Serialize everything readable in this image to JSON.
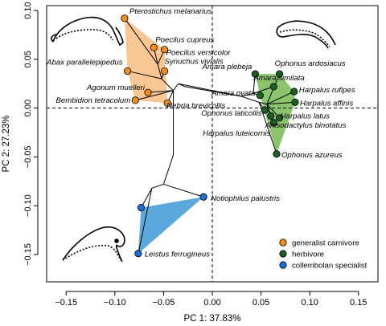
{
  "chart_data": {
    "type": "scatter",
    "xlabel": "PC 1: 37.83%",
    "ylabel": "PC 2: 27.23%",
    "xlim": [
      -0.17,
      0.17
    ],
    "ylim": [
      -0.178,
      0.105
    ],
    "xticks": [
      -0.15,
      -0.1,
      -0.05,
      0.0,
      0.05,
      0.1,
      0.15
    ],
    "xtick_labels": [
      "−0.15",
      "−0.10",
      "−0.05",
      "0.00",
      "0.05",
      "0.10",
      "0.15"
    ],
    "yticks": [
      -0.15,
      -0.1,
      -0.05,
      0.0,
      0.05,
      0.1
    ],
    "ytick_labels": [
      "−0.15",
      "−0.10",
      "−0.05",
      "0.00",
      "0.05",
      "0.10"
    ],
    "reference_lines": {
      "x": 0,
      "y": 0,
      "style": "dashed"
    },
    "groups": [
      {
        "name": "generalist carnivore",
        "color": "#f28e1c",
        "hull_color": "#f8c794"
      },
      {
        "name": "herbivore",
        "color": "#1d5e25",
        "hull_color": "#8cc46e"
      },
      {
        "name": "collembolan specialist",
        "color": "#1b6fd6",
        "hull_color": "#5aa8dc"
      }
    ],
    "points": [
      {
        "label": "Pterostichus melanarius",
        "x": -0.09,
        "y": 0.092,
        "group": "generalist carnivore"
      },
      {
        "label": "Poecilus cupreus",
        "x": -0.06,
        "y": 0.062,
        "group": "generalist carnivore"
      },
      {
        "label": "Poecilus versicolor",
        "x": -0.049,
        "y": 0.06,
        "group": "generalist carnivore"
      },
      {
        "label": "Abax parallelepipedus",
        "x": -0.087,
        "y": 0.038,
        "group": "generalist carnivore"
      },
      {
        "label": "Synuchus vivialis",
        "x": -0.049,
        "y": 0.038,
        "group": "generalist carnivore"
      },
      {
        "label": "Agonum muelleri",
        "x": -0.066,
        "y": 0.016,
        "group": "generalist carnivore"
      },
      {
        "label": "Bembidion tetracolum",
        "x": -0.079,
        "y": 0.008,
        "group": "generalist carnivore"
      },
      {
        "label": "Nebria brevicollis",
        "x": -0.046,
        "y": 0.005,
        "group": "generalist carnivore"
      },
      {
        "label": "Amara plebeja",
        "x": 0.044,
        "y": 0.035,
        "group": "herbivore"
      },
      {
        "label": "Ophonus ardosiacus",
        "x": 0.069,
        "y": 0.035,
        "group": "herbivore"
      },
      {
        "label": "Amara similata",
        "x": 0.063,
        "y": 0.022,
        "group": "herbivore"
      },
      {
        "label": "Amara ovata",
        "x": 0.049,
        "y": 0.013,
        "group": "herbivore"
      },
      {
        "label": "Harpalus rufipes",
        "x": 0.084,
        "y": 0.017,
        "group": "herbivore"
      },
      {
        "label": "Harpalus affinis",
        "x": 0.085,
        "y": 0.006,
        "group": "herbivore"
      },
      {
        "label": "Ophonus laticollis",
        "x": 0.054,
        "y": -0.002,
        "group": "herbivore"
      },
      {
        "label": "Harpalus latus",
        "x": 0.06,
        "y": -0.008,
        "group": "herbivore"
      },
      {
        "label": "Anisodactylus binotatus",
        "x": 0.069,
        "y": -0.01,
        "group": "herbivore"
      },
      {
        "label": "Harpalus luteicornis",
        "x": 0.063,
        "y": -0.015,
        "group": "herbivore"
      },
      {
        "label": "Ophonus azureus",
        "x": 0.066,
        "y": -0.047,
        "group": "herbivore"
      },
      {
        "label": "Notiophilus palustris",
        "x": -0.009,
        "y": -0.091,
        "group": "collembolan specialist"
      },
      {
        "label": "",
        "x": -0.073,
        "y": -0.102,
        "group": "collembolan specialist"
      },
      {
        "label": "Leistus ferrugineus",
        "x": -0.076,
        "y": -0.149,
        "group": "collembolan specialist"
      }
    ]
  }
}
